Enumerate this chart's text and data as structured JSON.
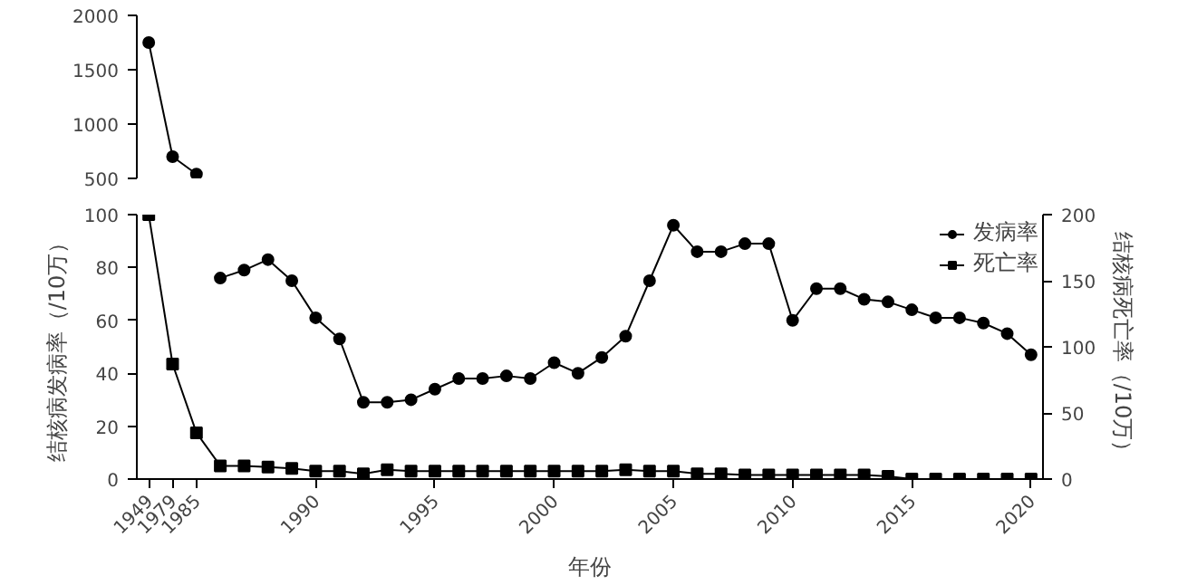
{
  "chart_data": [
    {
      "type": "line",
      "categories": [
        "1949",
        "1979",
        "1985",
        null,
        null,
        null,
        null,
        "1990",
        null,
        null,
        null,
        null,
        "1995",
        null,
        null,
        null,
        null,
        "2000",
        null,
        null,
        null,
        null,
        "2005",
        null,
        null,
        null,
        null,
        "2010",
        null,
        null,
        null,
        null,
        "2015",
        null,
        null,
        null,
        null,
        "2020"
      ],
      "ylim": [
        500,
        2000
      ],
      "yticks": [
        500,
        1000,
        1500,
        2000
      ],
      "tick_labels": "y",
      "series": [
        {
          "color": "#000000",
          "marker": "circle",
          "values": [
            1750,
            700,
            540,
            null,
            null,
            null,
            null,
            null,
            null,
            null,
            null,
            null,
            null,
            null,
            null,
            null,
            null,
            null,
            null,
            null,
            null,
            null,
            null,
            null,
            null,
            null,
            null,
            null,
            null,
            null,
            null,
            null,
            null,
            null,
            null,
            null,
            null,
            null
          ]
        }
      ]
    },
    {
      "type": "line",
      "categories": [
        "1949",
        "1979",
        "1985",
        null,
        null,
        null,
        null,
        "1990",
        null,
        null,
        null,
        null,
        "1995",
        null,
        null,
        null,
        null,
        "2000",
        null,
        null,
        null,
        null,
        "2005",
        null,
        null,
        null,
        null,
        "2010",
        null,
        null,
        null,
        null,
        "2015",
        null,
        null,
        null,
        null,
        "2020"
      ],
      "ylim": [
        0,
        100
      ],
      "yticks": [
        0,
        20,
        40,
        60,
        80,
        100
      ],
      "y2lim": [
        0,
        200
      ],
      "y2ticks": [
        0,
        50,
        100,
        150,
        200
      ],
      "ylabel": "结核病发病率（/10万）",
      "y2label": "结核病死亡率（/10万）",
      "xlabel": "年份",
      "legend": "top right",
      "series": [
        {
          "name": "发病率",
          "color": "#000000",
          "marker": "circle",
          "values": [
            null,
            null,
            null,
            76,
            79,
            83,
            75,
            61,
            53,
            29,
            29,
            30,
            34,
            38,
            38,
            39,
            38,
            44,
            40,
            46,
            54,
            75,
            96,
            86,
            86,
            89,
            89,
            60,
            72,
            72,
            68,
            67,
            64,
            61,
            61,
            59,
            55,
            47
          ]
        },
        {
          "name": "死亡率",
          "color": "#000000",
          "marker": "square",
          "axis": "y2",
          "values": [
            200,
            87,
            35,
            10,
            10,
            9,
            8,
            6,
            6,
            4,
            7,
            6,
            6,
            6,
            6,
            6,
            6,
            6,
            6,
            6,
            7,
            6,
            6,
            4,
            4,
            3,
            3,
            3,
            3,
            3,
            3,
            2,
            0,
            0,
            0,
            0,
            0,
            0
          ]
        }
      ]
    }
  ]
}
